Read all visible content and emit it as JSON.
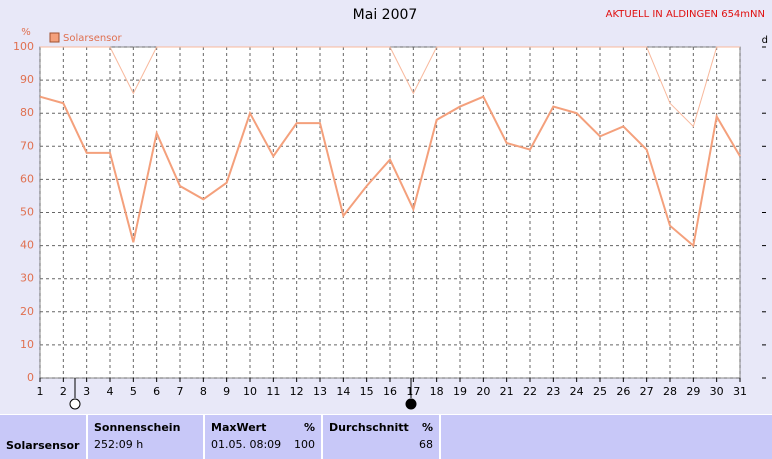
{
  "chart_data": {
    "type": "line",
    "title": "Mai 2007",
    "annotation": "AKTUELL IN ALDINGEN 654mNN",
    "y_label": "%",
    "right_axis_label": "d",
    "x": [
      1,
      2,
      3,
      4,
      5,
      6,
      7,
      8,
      9,
      10,
      11,
      12,
      13,
      14,
      15,
      16,
      17,
      18,
      19,
      20,
      21,
      22,
      23,
      24,
      25,
      26,
      27,
      28,
      29,
      30,
      31
    ],
    "xlim": [
      1,
      31
    ],
    "xticks": [
      1,
      2,
      3,
      4,
      5,
      6,
      7,
      8,
      9,
      10,
      11,
      12,
      13,
      14,
      15,
      16,
      17,
      18,
      19,
      20,
      21,
      22,
      23,
      24,
      25,
      26,
      27,
      28,
      29,
      30,
      31
    ],
    "ylim": [
      0,
      100
    ],
    "yticks": [
      0,
      10,
      20,
      30,
      40,
      50,
      60,
      70,
      80,
      90,
      100
    ],
    "grid": true,
    "series": [
      {
        "name": "Solarsensor",
        "color": "#f4a07c",
        "values": [
          85,
          83,
          68,
          68,
          41,
          74,
          58,
          54,
          59,
          80,
          67,
          77,
          77,
          49,
          58,
          66,
          51,
          78,
          82,
          85,
          71,
          69,
          82,
          80,
          73,
          76,
          69,
          46,
          40,
          79,
          67
        ]
      },
      {
        "color": "#f8b89c",
        "values": [
          100,
          100,
          100,
          100,
          86,
          100,
          100,
          100,
          100,
          100,
          100,
          100,
          100,
          100,
          100,
          100,
          86,
          100,
          100,
          100,
          100,
          100,
          100,
          100,
          100,
          100,
          100,
          83,
          76,
          100,
          100
        ]
      }
    ]
  },
  "summary": {
    "row_label": "Solarsensor",
    "sunshine": {
      "title": "Sonnenschein",
      "value": "252:09 h"
    },
    "max": {
      "title": "MaxWert",
      "unit": "%",
      "date": "01.05. 08:09",
      "value": "100"
    },
    "avg": {
      "title": "Durchschnitt",
      "unit": "%",
      "value": "68"
    }
  }
}
